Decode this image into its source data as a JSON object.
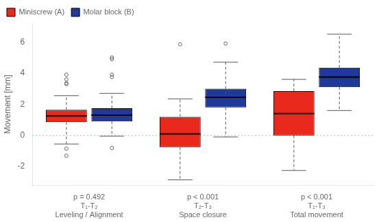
{
  "chart_data": {
    "type": "box",
    "ylabel": "Movement [mm]",
    "categories": [
      [
        "T₁-T₂",
        "Leveling / Alignment"
      ],
      [
        "T₂-T₃",
        "Space closure"
      ],
      [
        "T₁-T₃",
        "Total movement"
      ]
    ],
    "annotations": [
      "p = 0.492",
      "p < 0.001",
      "p < 0.001"
    ],
    "series": [
      {
        "name": "Miniscrew (A)",
        "color": "#E8291C",
        "values": [
          {
            "median": 1.25,
            "q1": 0.85,
            "q3": 1.65,
            "whislo": -0.55,
            "whishi": 2.55,
            "fliers": [
              -1.3,
              -0.85,
              3.3,
              3.35,
              3.6,
              3.9
            ]
          },
          {
            "median": 0.1,
            "q1": -0.75,
            "q3": 1.2,
            "whislo": -2.85,
            "whishi": 2.35,
            "fliers": [
              5.85
            ]
          },
          {
            "median": 1.4,
            "q1": 0.0,
            "q3": 2.85,
            "whislo": -2.25,
            "whishi": 3.6,
            "fliers": []
          }
        ]
      },
      {
        "name": "Molar block (B)",
        "color": "#1F3A9B",
        "values": [
          {
            "median": 1.3,
            "q1": 0.9,
            "q3": 1.75,
            "whislo": -0.05,
            "whishi": 2.7,
            "fliers": [
              -0.8,
              3.75,
              3.9,
              4.9,
              5.0
            ]
          },
          {
            "median": 2.45,
            "q1": 1.8,
            "q3": 3.0,
            "whislo": -0.1,
            "whishi": 4.7,
            "fliers": [
              5.9
            ]
          },
          {
            "median": 3.75,
            "q1": 3.1,
            "q3": 4.35,
            "whislo": 1.6,
            "whishi": 6.5,
            "fliers": []
          }
        ]
      }
    ],
    "reference_line": {
      "y": 0.0,
      "color": "#90EE90"
    },
    "ylim": [
      -3.2,
      7.2
    ],
    "yticks": [
      -2,
      0,
      2,
      4,
      6
    ],
    "grid": false,
    "legend": "upper left"
  }
}
